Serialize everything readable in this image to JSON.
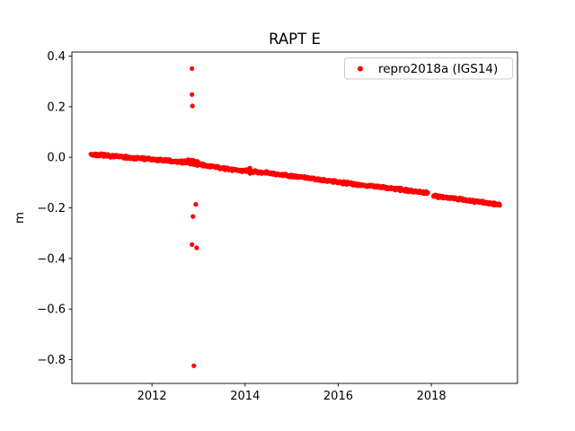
{
  "chart_data": {
    "type": "scatter",
    "title": "RAPT E",
    "xlabel": "",
    "ylabel": "m",
    "xlim": [
      2010.28,
      2019.85
    ],
    "ylim": [
      -0.894,
      0.416
    ],
    "xticks": [
      2012,
      2014,
      2016,
      2018
    ],
    "yticks": [
      0.4,
      0.2,
      0.0,
      -0.2,
      -0.4,
      -0.6,
      -0.8
    ],
    "grid": false,
    "colors": {
      "background": "#ffffff",
      "spine": "#000000",
      "tick_label": "#000000",
      "legend_edge": "#cccccc",
      "series_red": "#ff0000"
    },
    "legend": {
      "location": "upper right",
      "entries": [
        {
          "label": "repro2018a (IGS14)",
          "color": "#ff0000",
          "marker": "dot"
        }
      ]
    },
    "series": [
      {
        "name": "repro2018a (IGS14)",
        "color": "#ff0000",
        "marker": "dot",
        "marker_radius": 2.6,
        "seed": 7,
        "n_points": 950,
        "x_start": 2010.69,
        "x_end": 2019.47,
        "jitter": 0.0035,
        "trend_anchors": [
          [
            2010.69,
            0.012
          ],
          [
            2011.8,
            -0.005
          ],
          [
            2012.75,
            -0.02
          ],
          [
            2013.0,
            -0.028
          ],
          [
            2013.6,
            -0.046
          ],
          [
            2014.5,
            -0.062
          ],
          [
            2015.2,
            -0.078
          ],
          [
            2016.2,
            -0.103
          ],
          [
            2017.0,
            -0.12
          ],
          [
            2017.93,
            -0.14
          ],
          [
            2018.04,
            -0.152
          ],
          [
            2019.0,
            -0.175
          ],
          [
            2019.47,
            -0.188
          ]
        ],
        "gaps": [
          [
            2017.93,
            2018.04
          ]
        ],
        "clusters": [
          {
            "x_center": 2012.87,
            "x_spread": 0.12,
            "y_offset": 0.01,
            "y_spread": 0.004,
            "n": 30
          },
          {
            "x_center": 2014.1,
            "x_spread": 0.025,
            "y_offset": 0.0,
            "y_spread": 0.015,
            "n": 14
          }
        ],
        "outliers": [
          [
            2012.86,
            0.351
          ],
          [
            2012.86,
            0.248
          ],
          [
            2012.87,
            0.203
          ],
          [
            2012.94,
            -0.186
          ],
          [
            2012.88,
            -0.234
          ],
          [
            2012.86,
            -0.345
          ],
          [
            2012.96,
            -0.358
          ],
          [
            2012.9,
            -0.824
          ]
        ]
      }
    ]
  }
}
